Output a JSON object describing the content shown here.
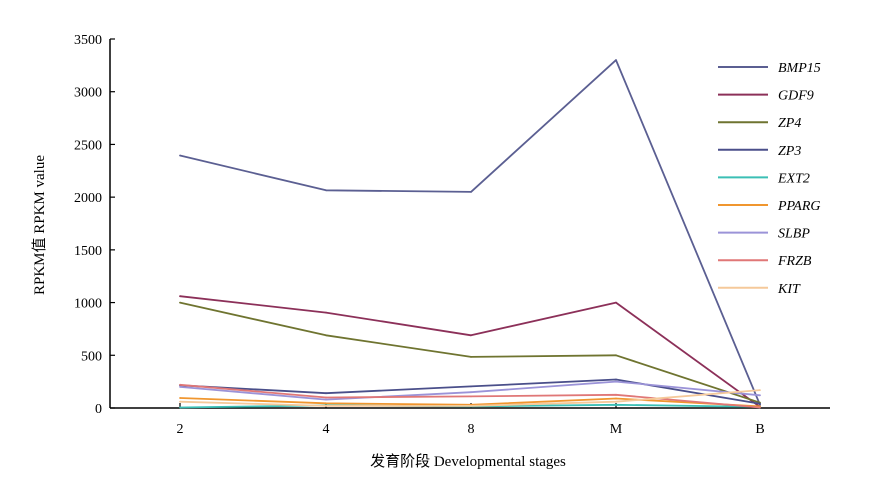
{
  "chart_data": {
    "type": "line",
    "title": "",
    "xlabel": "发育阶段 Developmental stages",
    "ylabel": "RPKM值 RPKM value",
    "categories": [
      "2",
      "4",
      "8",
      "M",
      "B"
    ],
    "ylim": [
      0,
      3500
    ],
    "yticks": [
      0,
      500,
      1000,
      1500,
      2000,
      2500,
      3000,
      3500
    ],
    "grid": false,
    "legend_position": "right",
    "series": [
      {
        "name": "BMP15",
        "color": "#5b5f92",
        "values": [
          2395,
          2065,
          2050,
          3300,
          30
        ]
      },
      {
        "name": "GDF9",
        "color": "#8c3059",
        "values": [
          1060,
          905,
          690,
          1000,
          10
        ]
      },
      {
        "name": "ZP4",
        "color": "#6f7430",
        "values": [
          1000,
          690,
          485,
          500,
          50
        ]
      },
      {
        "name": "ZP3",
        "color": "#4a4f8a",
        "values": [
          215,
          140,
          205,
          270,
          40
        ]
      },
      {
        "name": "EXT2",
        "color": "#3bbfb5",
        "values": [
          5,
          25,
          15,
          30,
          10
        ]
      },
      {
        "name": "PPARG",
        "color": "#f0962f",
        "values": [
          95,
          45,
          30,
          90,
          15
        ]
      },
      {
        "name": "SLBP",
        "color": "#9b93d8",
        "values": [
          200,
          80,
          150,
          250,
          120
        ]
      },
      {
        "name": "FRZB",
        "color": "#e07777",
        "values": [
          220,
          100,
          110,
          125,
          5
        ]
      },
      {
        "name": "KIT",
        "color": "#f5c99a",
        "values": [
          60,
          20,
          20,
          60,
          170
        ]
      }
    ]
  }
}
